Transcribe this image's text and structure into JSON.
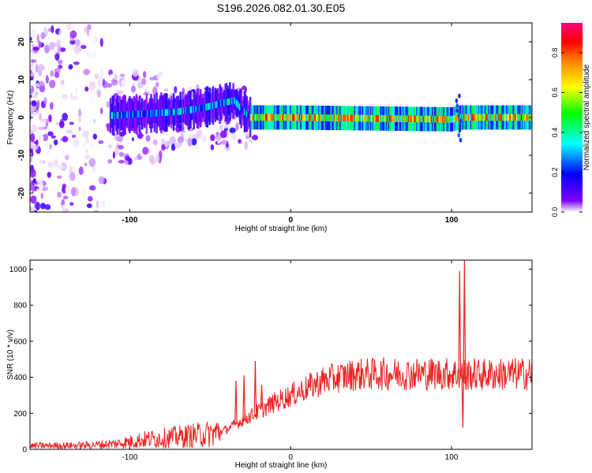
{
  "title": "S196.2026.082.01.30.E05",
  "chart_data": [
    {
      "type": "heatmap",
      "title": "S196.2026.082.01.30.E05",
      "xlabel": "Height of straight line (km)",
      "ylabel": "Frequency (Hz)",
      "xlim": [
        -162,
        150
      ],
      "ylim": [
        -25,
        25
      ],
      "xticks": [
        -100,
        0,
        100
      ],
      "yticks": [
        -20,
        -10,
        0,
        10,
        20
      ],
      "colorbar": {
        "label": "Normalized spectral amplitude",
        "range": [
          0,
          0.95
        ],
        "ticks": [
          0.0,
          0.2,
          0.4,
          0.6,
          0.8
        ],
        "tick_labels": [
          "0.0",
          "0.2",
          "0.4",
          "0.6",
          "0.8"
        ],
        "colors": [
          "#ffffff",
          "#8000ff",
          "#0000ff",
          "#00ffff",
          "#00ff00",
          "#ffff00",
          "#ff8000",
          "#ff0000",
          "#ff0080"
        ]
      },
      "ridge": [
        {
          "x": -110,
          "f": 0.5
        },
        {
          "x": -90,
          "f": 1.0
        },
        {
          "x": -70,
          "f": 1.5
        },
        {
          "x": -55,
          "f": 2.5
        },
        {
          "x": -45,
          "f": 3.5
        },
        {
          "x": -35,
          "f": 4.5
        },
        {
          "x": -30,
          "f": 2.0
        },
        {
          "x": -25,
          "f": 0.0
        },
        {
          "x": 0,
          "f": 0.0
        },
        {
          "x": 100,
          "f": -0.5
        },
        {
          "x": 105,
          "f": 0.0
        },
        {
          "x": 150,
          "f": 0.0
        }
      ]
    },
    {
      "type": "line",
      "xlabel": "Height of straight line (km)",
      "ylabel": "SNR (10 * v/v)",
      "xlim": [
        -162,
        150
      ],
      "ylim": [
        0,
        1050
      ],
      "xticks": [
        -100,
        0,
        100
      ],
      "yticks": [
        0,
        200,
        400,
        600,
        800,
        1000
      ],
      "color": "#ee2222",
      "envelope": [
        {
          "x": -162,
          "y": 20
        },
        {
          "x": -130,
          "y": 22
        },
        {
          "x": -110,
          "y": 30
        },
        {
          "x": -90,
          "y": 55
        },
        {
          "x": -70,
          "y": 70
        },
        {
          "x": -50,
          "y": 85
        },
        {
          "x": -40,
          "y": 110
        },
        {
          "x": -30,
          "y": 160
        },
        {
          "x": -20,
          "y": 210
        },
        {
          "x": -10,
          "y": 260
        },
        {
          "x": 0,
          "y": 300
        },
        {
          "x": 10,
          "y": 340
        },
        {
          "x": 20,
          "y": 380
        },
        {
          "x": 30,
          "y": 400
        },
        {
          "x": 40,
          "y": 415
        },
        {
          "x": 60,
          "y": 420
        },
        {
          "x": 80,
          "y": 420
        },
        {
          "x": 100,
          "y": 420
        },
        {
          "x": 120,
          "y": 415
        },
        {
          "x": 150,
          "y": 420
        }
      ],
      "spikes": [
        {
          "x": -34,
          "y": 380
        },
        {
          "x": -29,
          "y": 410
        },
        {
          "x": -22,
          "y": 490
        },
        {
          "x": -18,
          "y": 360
        },
        {
          "x": 105,
          "y": 990
        },
        {
          "x": 107,
          "y": 120
        },
        {
          "x": 108,
          "y": 1050
        },
        {
          "x": 109,
          "y": 330
        }
      ]
    }
  ]
}
